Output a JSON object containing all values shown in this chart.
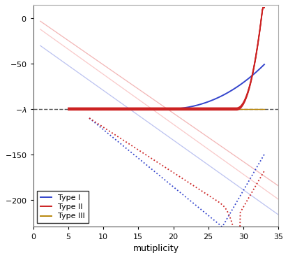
{
  "xlim": [
    0,
    35
  ],
  "ylim": [
    -230,
    15
  ],
  "xlabel": "mutiplicity",
  "dashed_y": -100,
  "yticks": [
    0,
    -50,
    -100,
    -150,
    -200
  ],
  "xticks": [
    0,
    5,
    10,
    15,
    20,
    25,
    30,
    35
  ],
  "colors": {
    "typeI": "#3344cc",
    "typeII": "#cc2222",
    "typeIII": "#b8860b",
    "typeI_light": "#b0b8ee",
    "typeII_light1": "#f0a8a8",
    "typeII_light2": "#f8c0c0"
  },
  "legend_entries": [
    "Type I",
    "Type II",
    "Type III"
  ],
  "figsize": [
    4.13,
    3.69
  ],
  "dpi": 100
}
